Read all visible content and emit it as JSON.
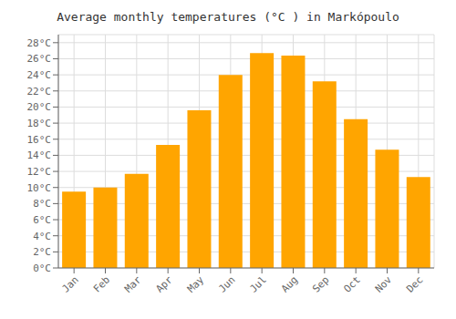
{
  "chart_data": {
    "type": "bar",
    "title": "Average monthly temperatures (°C ) in Markópoulo",
    "categories": [
      "Jan",
      "Feb",
      "Mar",
      "Apr",
      "May",
      "Jun",
      "Jul",
      "Aug",
      "Sep",
      "Oct",
      "Nov",
      "Dec"
    ],
    "values": [
      9.5,
      10.0,
      11.7,
      15.3,
      19.6,
      24.0,
      26.7,
      26.4,
      23.2,
      18.5,
      14.7,
      11.3
    ],
    "color": "#FFA500",
    "ylim": [
      0,
      29
    ],
    "yticks": [
      {
        "value": 0,
        "label": "0°C"
      },
      {
        "value": 2,
        "label": "2°C"
      },
      {
        "value": 4,
        "label": "4°C"
      },
      {
        "value": 6,
        "label": "6°C"
      },
      {
        "value": 8,
        "label": "8°C"
      },
      {
        "value": 10,
        "label": "10°C"
      },
      {
        "value": 12,
        "label": "12°C"
      },
      {
        "value": 14,
        "label": "14°C"
      },
      {
        "value": 16,
        "label": "16°C"
      },
      {
        "value": 18,
        "label": "18°C"
      },
      {
        "value": 20,
        "label": "20°C"
      },
      {
        "value": 22,
        "label": "22°C"
      },
      {
        "value": 24,
        "label": "24°C"
      },
      {
        "value": 26,
        "label": "26°C"
      },
      {
        "value": 28,
        "label": "28°C"
      }
    ],
    "grid": true
  }
}
